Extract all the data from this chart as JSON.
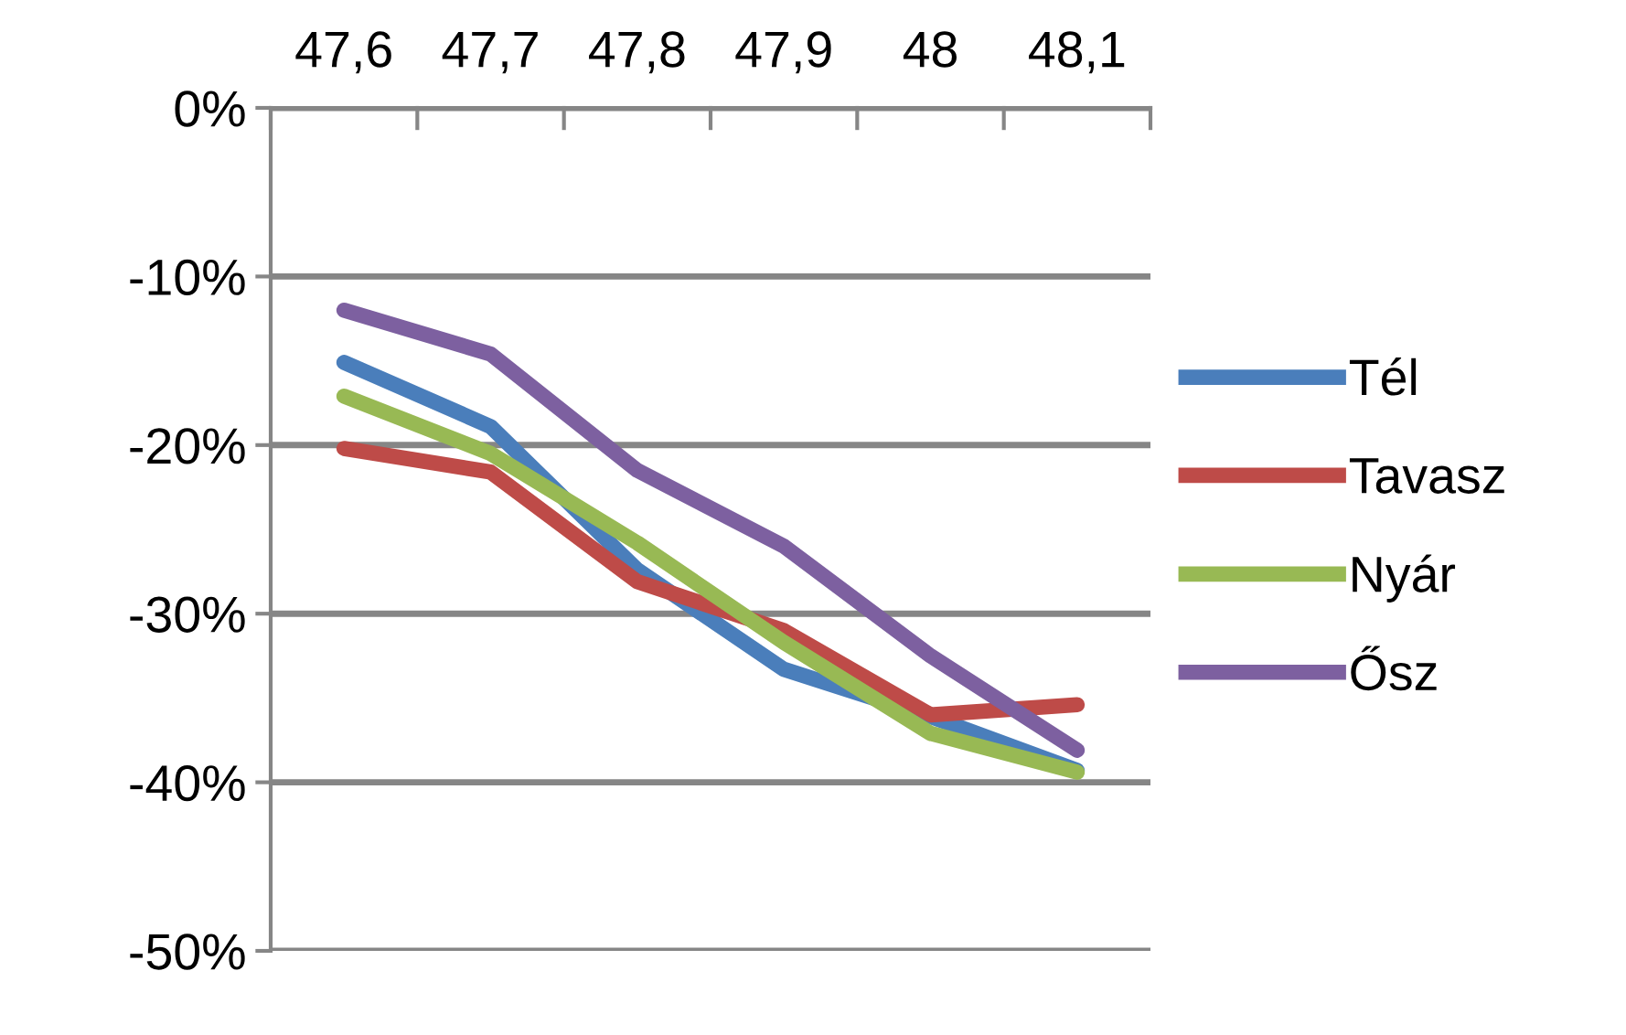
{
  "chart_data": {
    "type": "line",
    "categories": [
      "47,6",
      "47,7",
      "47,8",
      "47,9",
      "48",
      "48,1"
    ],
    "series": [
      {
        "name": "Tél",
        "color": "#4a7ebb",
        "values": [
          -15.1,
          -18.9,
          -27.4,
          -33.3,
          -36.1,
          -39.3
        ]
      },
      {
        "name": "Tavasz",
        "color": "#be4b48",
        "values": [
          -20.2,
          -21.6,
          -28.1,
          -31.0,
          -36.0,
          -35.4
        ]
      },
      {
        "name": "Nyár",
        "color": "#98b954",
        "values": [
          -17.1,
          -20.5,
          -25.8,
          -31.7,
          -37.1,
          -39.4
        ]
      },
      {
        "name": "Ősz",
        "color": "#7d60a0",
        "values": [
          -12.0,
          -14.6,
          -21.5,
          -26.0,
          -32.5,
          -38.1
        ]
      }
    ],
    "ylim": [
      -50,
      0
    ],
    "yticks": [
      {
        "value": -50,
        "label": "-50%"
      },
      {
        "value": -40,
        "label": "-40%"
      },
      {
        "value": -30,
        "label": "-30%"
      },
      {
        "value": -20,
        "label": "-20%"
      },
      {
        "value": -10,
        "label": "-10%"
      },
      {
        "value": 0,
        "label": "0%"
      }
    ],
    "grid": "y",
    "legend": "right",
    "marker": "none",
    "line_style": "solid"
  }
}
